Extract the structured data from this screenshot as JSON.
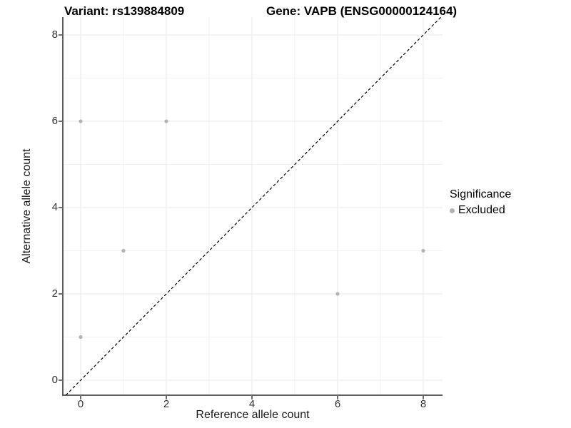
{
  "chart_data": {
    "type": "scatter",
    "titles": {
      "variant": "Variant: rs139884809",
      "gene": "Gene: VAPB (ENSG00000124164)"
    },
    "xlabel": "Reference allele count",
    "ylabel": "Alternative allele count",
    "xlim": [
      -0.45,
      8.45
    ],
    "ylim": [
      -0.45,
      8.45
    ],
    "x_ticks": [
      0,
      2,
      4,
      6,
      8
    ],
    "y_ticks": [
      0,
      2,
      4,
      6,
      8
    ],
    "x_minor_ticks": [
      1,
      3,
      5,
      7
    ],
    "y_minor_ticks": [
      1,
      3,
      5,
      7
    ],
    "grid": true,
    "series": [
      {
        "name": "Excluded",
        "color": "#b3b3b3",
        "points": [
          [
            0,
            1
          ],
          [
            0,
            6
          ],
          [
            1,
            3
          ],
          [
            2,
            6
          ],
          [
            6,
            2
          ],
          [
            8,
            3
          ]
        ]
      }
    ],
    "reference_line": {
      "type": "identity",
      "style": "dashed",
      "color": "#000000"
    },
    "legend": {
      "title": "Significance",
      "position": "right",
      "items": [
        {
          "label": "Excluded",
          "color": "#b3b3b3"
        }
      ]
    },
    "colors": {
      "grid_major": "#e8e8e8",
      "grid_minor": "#f2f2f2",
      "axis_line": "#4d4d4d",
      "tick_mark": "#333333"
    }
  }
}
